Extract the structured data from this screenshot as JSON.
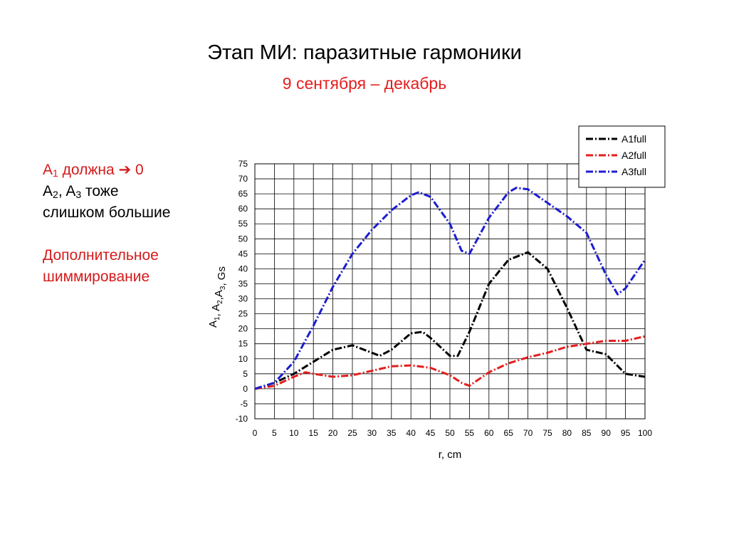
{
  "slide": {
    "title": "Этап МИ: паразитные гармоники",
    "subtitle": "9 сентября – декабрь"
  },
  "notes": {
    "line1_a": "A",
    "line1_sub": "1",
    "line1_rest": " должна ",
    "line1_arrow": "➔",
    "line1_value": " 0",
    "line2_a": "A",
    "line2_sub2": "2",
    "line2_mid": ", A",
    "line2_sub3": "3",
    "line2_rest": " тоже",
    "line3": "слишком большие",
    "line4": "Дополнительное",
    "line5": "шиммирование"
  },
  "colors": {
    "A1full": "#000000",
    "A2full": "#e41e1e",
    "A3full": "#1c1cd2",
    "highlight": "#d41b1b"
  },
  "chart_data": {
    "type": "line",
    "xlabel": "r, cm",
    "ylabel": "A1, A2,A3, Gs",
    "xlim": [
      0,
      100
    ],
    "ylim": [
      -10,
      75
    ],
    "x_ticks": [
      0,
      5,
      10,
      15,
      20,
      25,
      30,
      35,
      40,
      45,
      50,
      55,
      60,
      65,
      70,
      75,
      80,
      85,
      90,
      95,
      100
    ],
    "y_ticks": [
      -10,
      -5,
      0,
      5,
      10,
      15,
      20,
      25,
      30,
      35,
      40,
      45,
      50,
      55,
      60,
      65,
      70,
      75
    ],
    "grid": true,
    "legend_position": "top-right",
    "series": [
      {
        "name": "A1full",
        "style": "dash-dot",
        "x": [
          0,
          5,
          10,
          15,
          20,
          25,
          30,
          32,
          35,
          40,
          43,
          45,
          50,
          52,
          55,
          60,
          65,
          70,
          75,
          80,
          85,
          90,
          95,
          100
        ],
        "y": [
          0,
          2,
          5,
          9,
          13,
          14.5,
          12,
          11,
          13,
          18.5,
          19,
          17,
          11,
          11,
          19,
          35,
          43,
          45.5,
          40,
          27,
          13,
          11.5,
          5,
          4
        ]
      },
      {
        "name": "A2full",
        "style": "dash-dot",
        "x": [
          0,
          5,
          10,
          13,
          15,
          20,
          25,
          30,
          35,
          40,
          45,
          50,
          53,
          55,
          60,
          65,
          70,
          75,
          80,
          85,
          90,
          95,
          100
        ],
        "y": [
          0,
          1,
          4,
          5.5,
          5,
          4,
          4.5,
          6,
          7.5,
          7.8,
          7,
          4.5,
          2,
          1,
          5.5,
          8.5,
          10.5,
          12,
          14,
          15,
          16,
          16,
          17.5
        ]
      },
      {
        "name": "A3full",
        "style": "dash-dot",
        "x": [
          0,
          5,
          10,
          15,
          20,
          25,
          30,
          35,
          40,
          42,
          45,
          50,
          53,
          55,
          60,
          65,
          67,
          70,
          75,
          80,
          85,
          90,
          93,
          95,
          100
        ],
        "y": [
          0,
          2,
          9,
          21,
          34,
          45,
          53,
          59.5,
          64.5,
          65.5,
          64,
          55,
          46,
          45,
          57,
          65.5,
          67,
          66.5,
          62,
          57.5,
          52,
          38,
          31.5,
          33.5,
          43
        ]
      }
    ]
  }
}
